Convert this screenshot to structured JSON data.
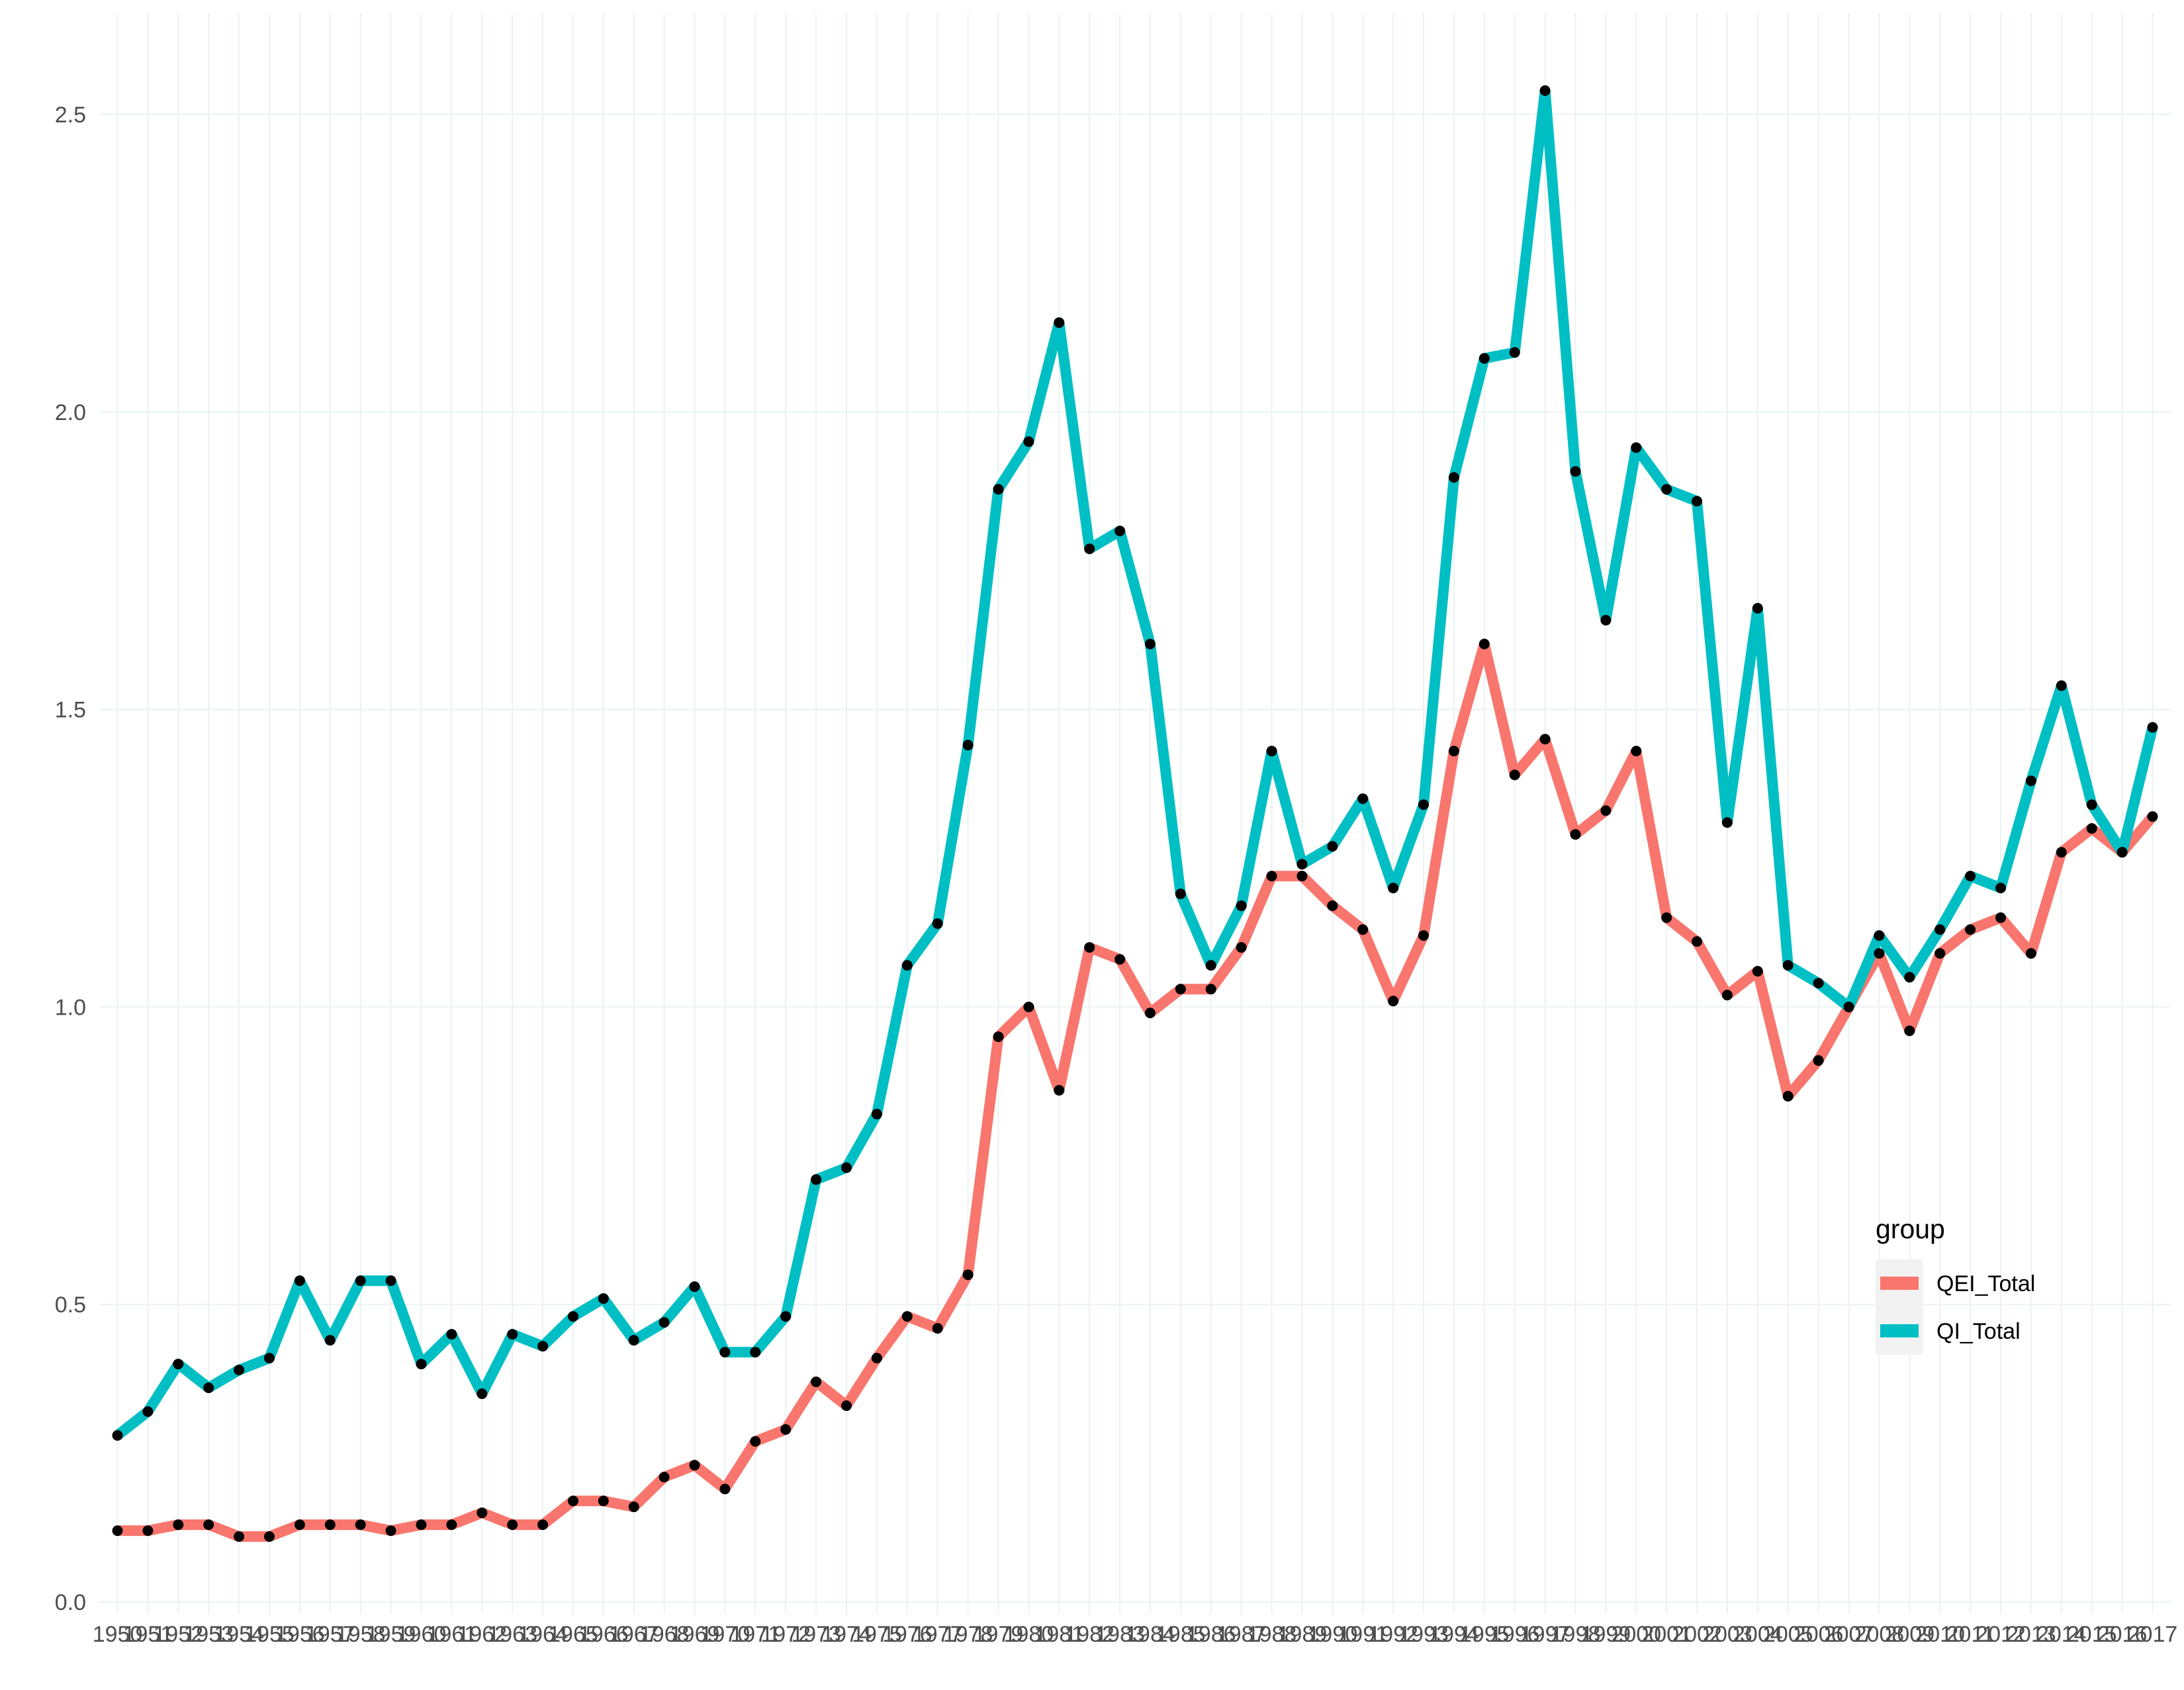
{
  "chart_data": {
    "type": "line",
    "title": "",
    "xlabel": "",
    "ylabel": "",
    "x": [
      1950,
      1951,
      1952,
      1953,
      1954,
      1955,
      1956,
      1957,
      1958,
      1959,
      1960,
      1961,
      1962,
      1963,
      1964,
      1965,
      1966,
      1967,
      1968,
      1969,
      1970,
      1971,
      1972,
      1973,
      1974,
      1975,
      1976,
      1977,
      1978,
      1979,
      1980,
      1981,
      1982,
      1983,
      1984,
      1985,
      1986,
      1987,
      1988,
      1989,
      1990,
      1991,
      1992,
      1993,
      1994,
      1995,
      1996,
      1997,
      1998,
      1999,
      2000,
      2001,
      2002,
      2003,
      2004,
      2005,
      2006,
      2007,
      2008,
      2009,
      2010,
      2011,
      2012,
      2013,
      2014,
      2015,
      2016,
      2017
    ],
    "x_tick_labels": [
      "1950",
      "1951",
      "1952",
      "1953",
      "1954",
      "1955",
      "1956",
      "1957",
      "1958",
      "1959",
      "1960",
      "1961",
      "1962",
      "1963",
      "1964",
      "1965",
      "1966",
      "1967",
      "1968",
      "1969",
      "1970",
      "1971",
      "1972",
      "1973",
      "1974",
      "1975",
      "1976",
      "1977",
      "1978",
      "1979",
      "1980",
      "1981",
      "1982",
      "1983",
      "1984",
      "1985",
      "1986",
      "1987",
      "1988",
      "1989",
      "1990",
      "1991",
      "1992",
      "1993",
      "1994",
      "1995",
      "1996",
      "1997",
      "1998",
      "1999",
      "2000",
      "2001",
      "2002",
      "2003",
      "2004",
      "2005",
      "2006",
      "2007",
      "2008",
      "2009",
      "2010",
      "2011",
      "2012",
      "2013",
      "2014",
      "2015",
      "2016",
      "2017"
    ],
    "ylim": [
      -0.02,
      2.67
    ],
    "y_ticks": [
      0.0,
      0.5,
      1.0,
      1.5,
      2.0,
      2.5
    ],
    "y_tick_labels": [
      "0.0",
      "0.5",
      "1.0",
      "1.5",
      "2.0",
      "2.5"
    ],
    "grid": true,
    "legend": {
      "title": "group",
      "placement": "right"
    },
    "series": [
      {
        "name": "QEI_Total",
        "color": "#F8766D",
        "values": [
          0.12,
          0.12,
          0.13,
          0.13,
          0.11,
          0.11,
          0.13,
          0.13,
          0.13,
          0.12,
          0.13,
          0.13,
          0.15,
          0.13,
          0.13,
          0.17,
          0.17,
          0.16,
          0.21,
          0.23,
          0.19,
          0.27,
          0.29,
          0.37,
          0.33,
          0.41,
          0.48,
          0.46,
          0.55,
          0.95,
          1.0,
          0.86,
          1.1,
          1.08,
          0.99,
          1.03,
          1.03,
          1.1,
          1.22,
          1.22,
          1.17,
          1.13,
          1.01,
          1.12,
          1.43,
          1.61,
          1.39,
          1.45,
          1.29,
          1.33,
          1.43,
          1.15,
          1.11,
          1.02,
          1.06,
          0.85,
          0.91,
          1.0,
          1.09,
          0.96,
          1.09,
          1.13,
          1.15,
          1.09,
          1.26,
          1.3,
          1.26,
          1.32
        ]
      },
      {
        "name": "QI_Total",
        "color": "#00BFC4",
        "values": [
          0.28,
          0.32,
          0.4,
          0.36,
          0.39,
          0.41,
          0.54,
          0.44,
          0.54,
          0.54,
          0.4,
          0.45,
          0.35,
          0.45,
          0.43,
          0.48,
          0.51,
          0.44,
          0.47,
          0.53,
          0.42,
          0.42,
          0.48,
          0.71,
          0.73,
          0.82,
          1.07,
          1.14,
          1.44,
          1.87,
          1.95,
          2.15,
          1.77,
          1.8,
          1.61,
          1.19,
          1.07,
          1.17,
          1.43,
          1.24,
          1.27,
          1.35,
          1.2,
          1.34,
          1.89,
          2.09,
          2.1,
          2.54,
          1.9,
          1.65,
          1.94,
          1.87,
          1.85,
          1.31,
          1.67,
          1.07,
          1.04,
          1.0,
          1.12,
          1.05,
          1.13,
          1.22,
          1.2,
          1.38,
          1.54,
          1.34,
          1.26,
          1.47
        ]
      }
    ]
  }
}
